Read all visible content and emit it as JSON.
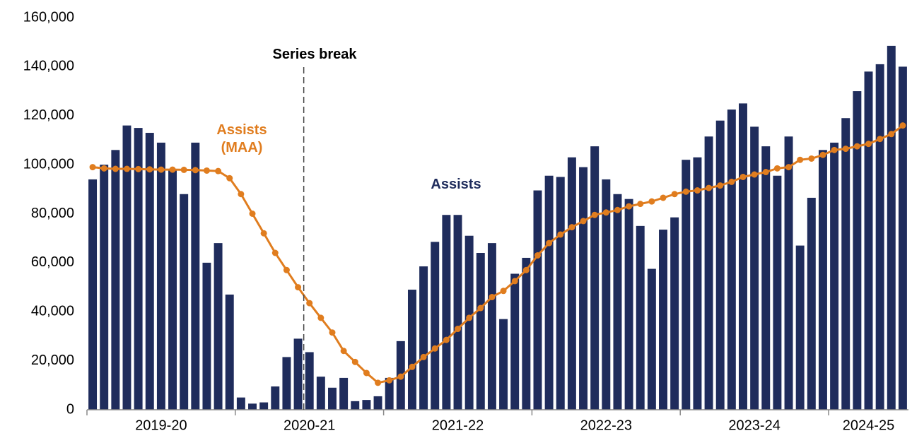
{
  "chart_data": {
    "type": "bar_line",
    "categories": [
      null,
      null,
      null,
      null,
      null,
      null,
      "2019-20",
      null,
      null,
      null,
      null,
      null,
      null,
      null,
      null,
      null,
      null,
      null,
      null,
      "2020-21",
      null,
      null,
      null,
      null,
      null,
      null,
      null,
      null,
      null,
      null,
      null,
      null,
      "2021-22",
      null,
      null,
      null,
      null,
      null,
      null,
      null,
      null,
      null,
      null,
      null,
      null,
      "2022-23",
      null,
      null,
      null,
      null,
      null,
      null,
      null,
      null,
      null,
      null,
      null,
      null,
      "2023-24",
      null,
      null,
      null,
      null,
      null,
      null,
      null,
      null,
      null,
      "2024-25",
      null,
      null,
      null
    ],
    "series": [
      {
        "kind": "bar",
        "color": "#1f2c5c",
        "values": [
          94000,
          100000,
          106000,
          116000,
          115000,
          113000,
          109000,
          98000,
          88000,
          109000,
          60000,
          68000,
          47000,
          5000,
          2500,
          3000,
          9500,
          21500,
          29000,
          23500,
          13500,
          9000,
          13000,
          3500,
          4000,
          5500,
          13000,
          28000,
          49000,
          58500,
          68500,
          79500,
          79500,
          71000,
          64000,
          68000,
          37000,
          55500,
          62000,
          89500,
          95500,
          95000,
          103000,
          99000,
          107500,
          94000,
          88000,
          86000,
          75000,
          57500,
          73500,
          78500,
          102000,
          103000,
          111500,
          118000,
          122500,
          125000,
          115500,
          107500,
          95500,
          111500,
          67000,
          86500,
          106000,
          109000,
          119000,
          130000,
          138000,
          141000,
          148500,
          140000
        ]
      },
      {
        "kind": "line",
        "color": "#e07d1f",
        "values": [
          99000,
          98500,
          98300,
          98300,
          98200,
          98100,
          98000,
          98000,
          97900,
          97800,
          97600,
          97400,
          94500,
          88000,
          80000,
          72000,
          64000,
          57000,
          50000,
          43500,
          37500,
          31500,
          24000,
          19500,
          15000,
          11000,
          12000,
          13500,
          17500,
          21500,
          25000,
          28500,
          33000,
          37500,
          41500,
          46000,
          48500,
          52500,
          57000,
          63000,
          68000,
          71500,
          74500,
          77000,
          79500,
          80500,
          81500,
          83000,
          84000,
          85000,
          86500,
          88000,
          89000,
          89500,
          90500,
          91500,
          93000,
          95000,
          96000,
          97000,
          98500,
          99000,
          102000,
          102500,
          104000,
          106000,
          106500,
          107500,
          108500,
          110500,
          112500,
          116000
        ]
      }
    ],
    "annotations": [
      {
        "lines": [
          "Assists",
          "(MAA)"
        ],
        "color": "#e07d1f"
      },
      {
        "lines": [
          "Assists"
        ],
        "color": "#1f2c5c"
      },
      {
        "lines": [
          "Series break"
        ],
        "color": "#000000"
      }
    ],
    "ylim": [
      0,
      160000
    ],
    "yticks": [
      0,
      {
        "value": 20000,
        "label": "20,000"
      },
      {
        "value": 40000,
        "label": "40,000"
      },
      {
        "value": 60000,
        "label": "60,000"
      },
      {
        "value": 80000,
        "label": "80,000"
      },
      {
        "value": 100000,
        "label": "100,000"
      },
      {
        "value": 120000,
        "label": "120,000"
      },
      {
        "value": 140000,
        "label": "140,000"
      },
      {
        "value": 160000,
        "label": "160,000"
      }
    ],
    "grid": false
  }
}
